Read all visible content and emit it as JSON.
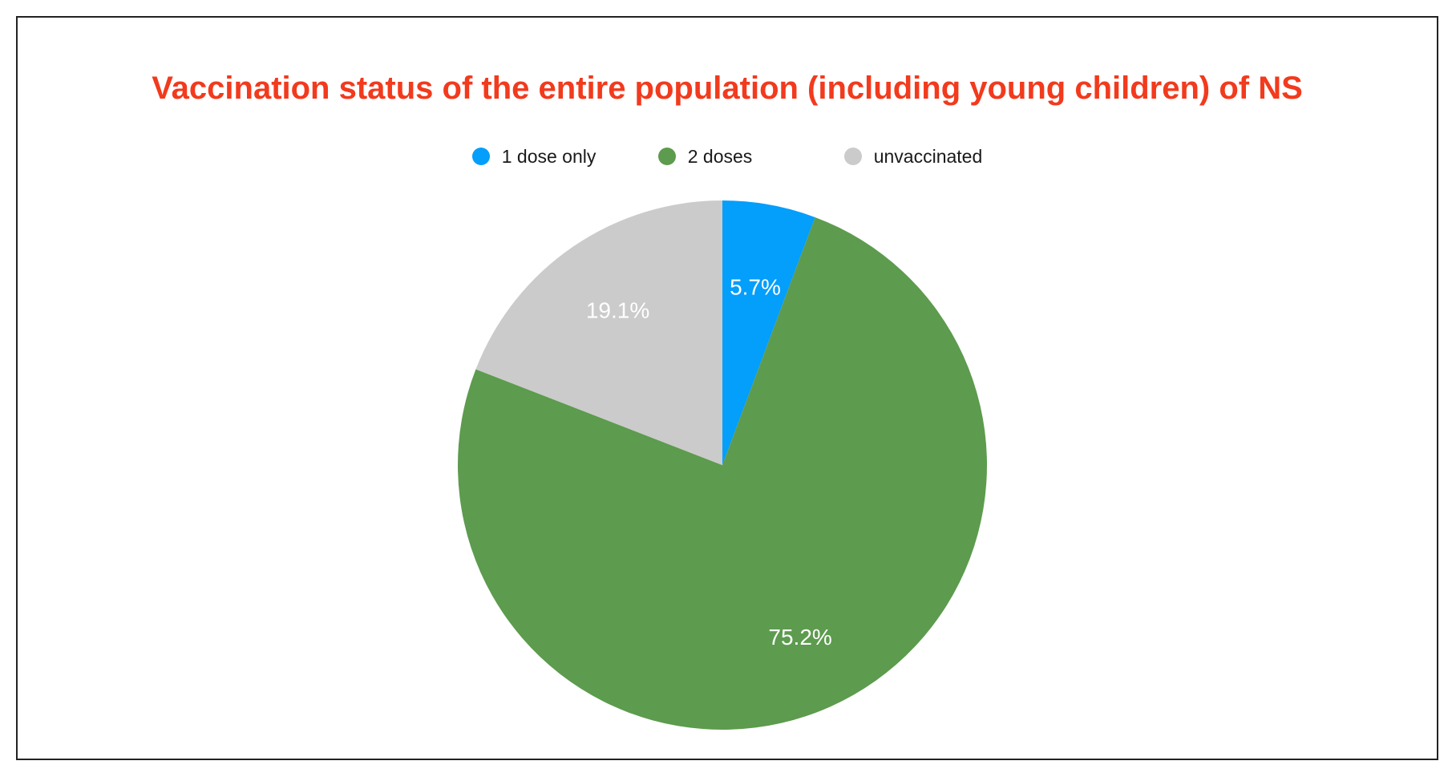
{
  "chart_data": {
    "type": "pie",
    "title": "Vaccination status of the entire population (including young children) of NS",
    "categories": [
      "1 dose only",
      "2 doses",
      "unvaccinated"
    ],
    "values": [
      5.7,
      75.2,
      19.1
    ],
    "labels": [
      "5.7%",
      "75.2%",
      "19.1%"
    ],
    "colors": [
      "#049efb",
      "#5d9b4e",
      "#cbcbcb"
    ],
    "legend_position": "top",
    "start_angle_deg": 0,
    "direction": "clockwise"
  },
  "colors": {
    "title": "#f23a1d",
    "label_text": "#ffffff",
    "frame_border": "#222222"
  }
}
